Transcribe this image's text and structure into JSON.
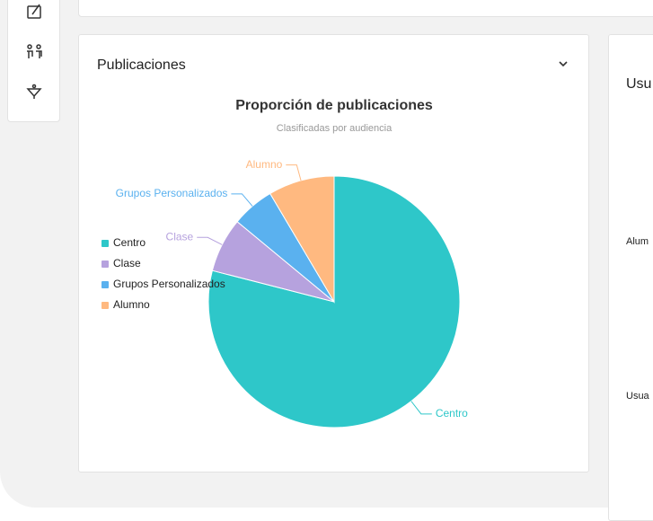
{
  "panel": {
    "title": "Publicaciones"
  },
  "side_panel": {
    "title": "Usu",
    "labels": [
      "Alum",
      "Usua"
    ]
  },
  "chart_data": {
    "type": "pie",
    "title": "Proporción de publicaciones",
    "subtitle": "Clasificadas por audiencia",
    "categories": [
      "Centro",
      "Clase",
      "Grupos Personalizados",
      "Alumno"
    ],
    "values": [
      79,
      7,
      5.5,
      8.5
    ],
    "colors": [
      "#2ec7c9",
      "#b6a2de",
      "#5ab1ef",
      "#ffb980"
    ],
    "legend": "left"
  }
}
